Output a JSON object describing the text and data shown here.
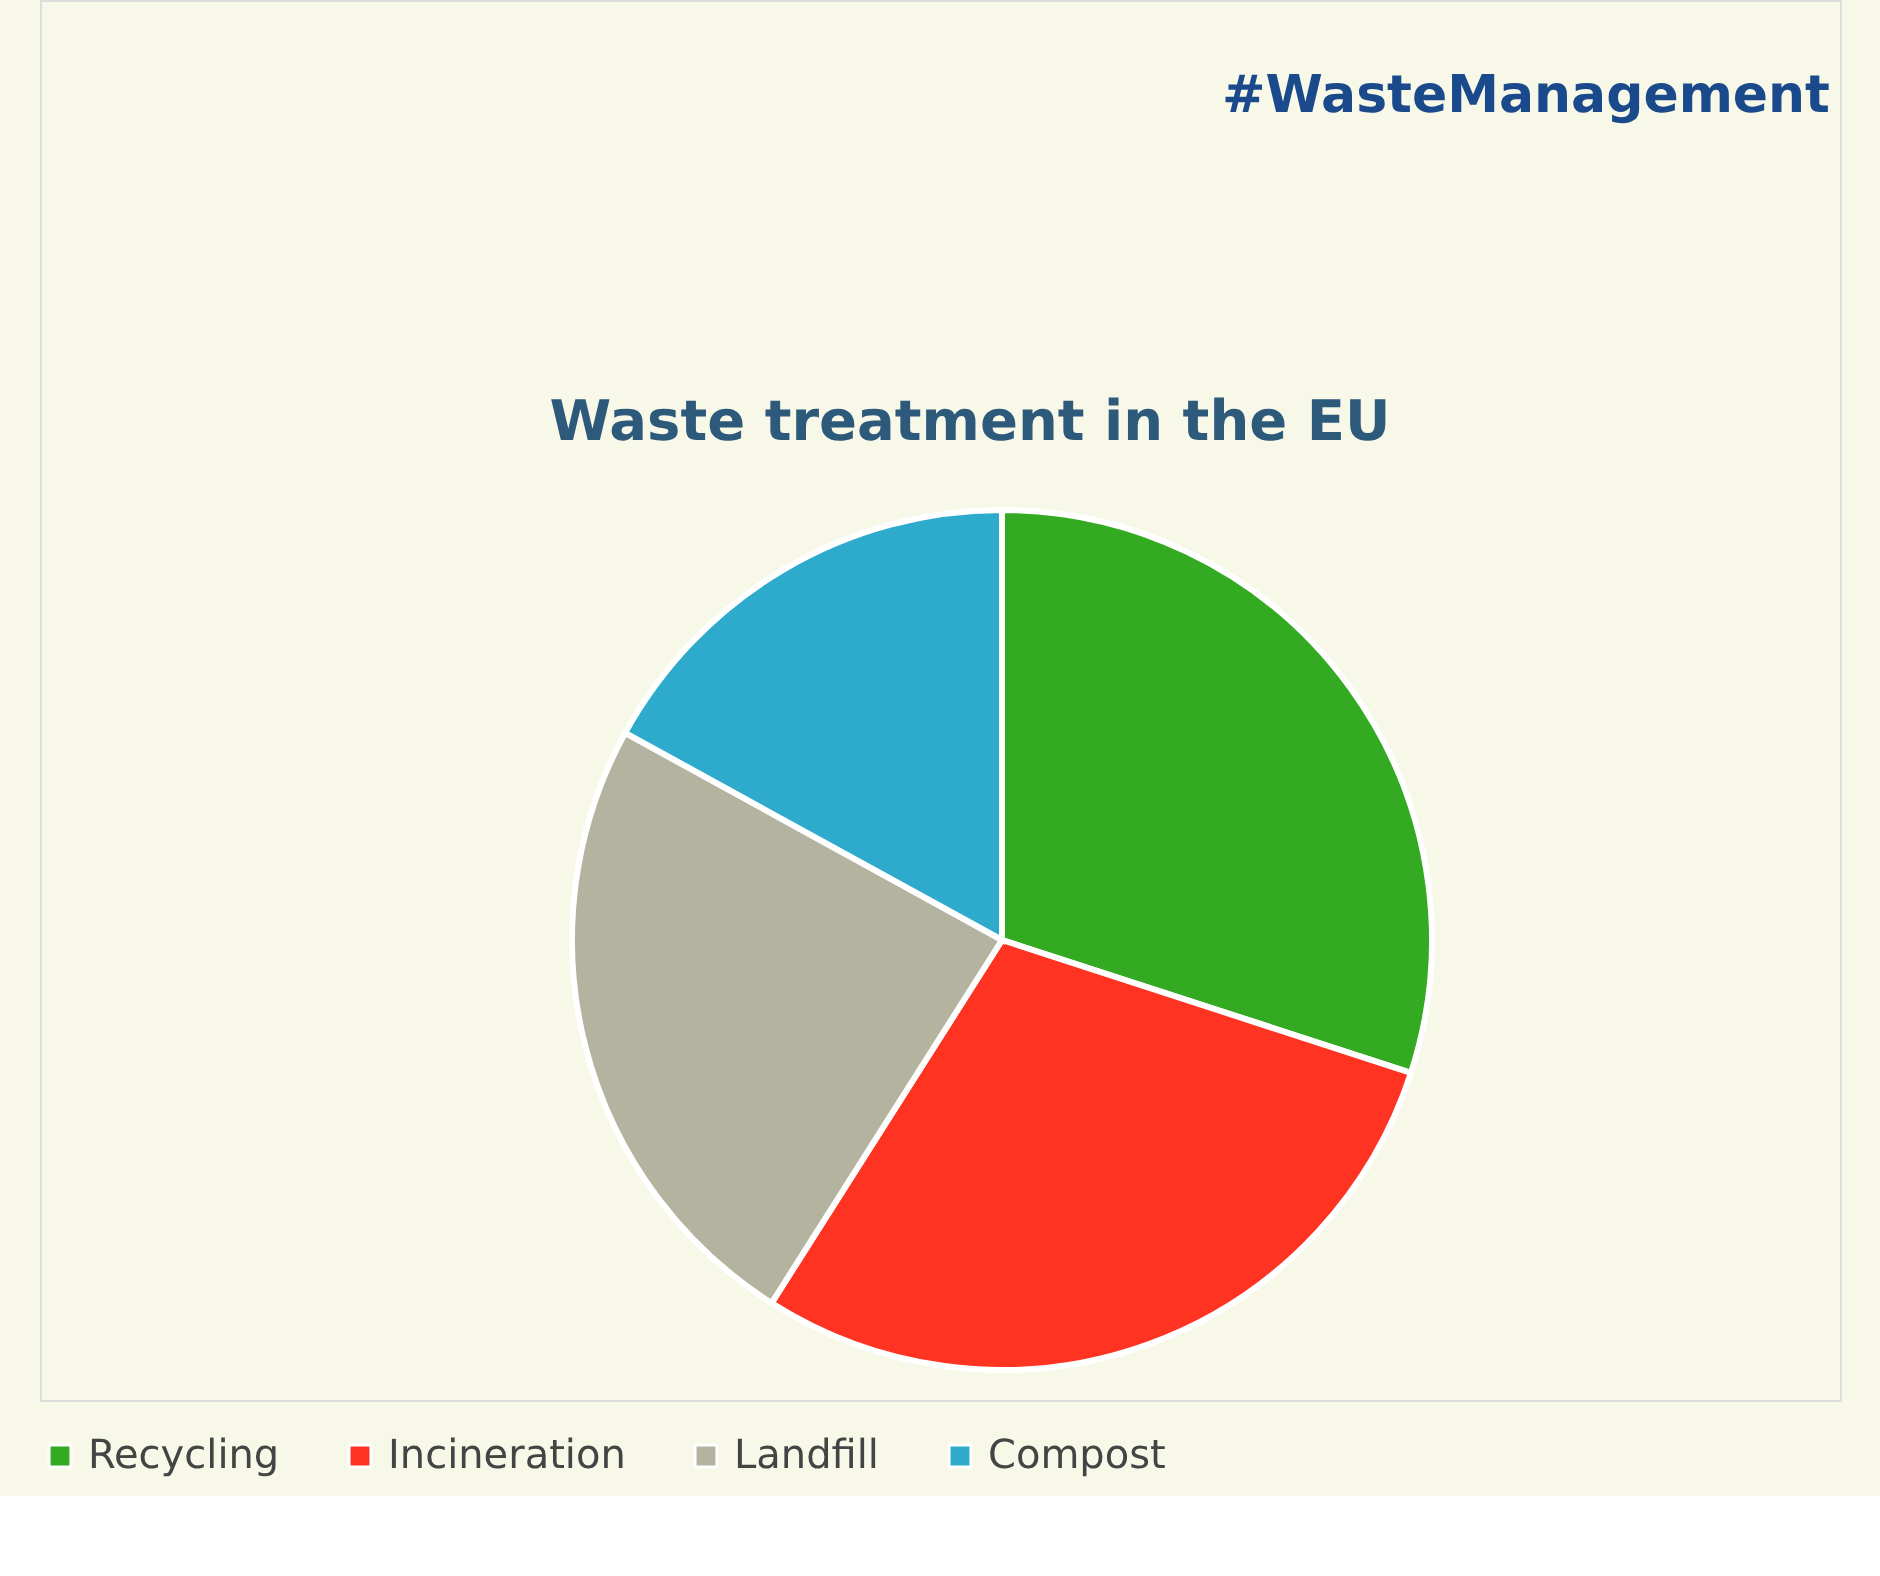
{
  "chart_data": {
    "type": "pie",
    "title": "Waste treatment in the EU",
    "categories": [
      "Recycling",
      "Incineration",
      "Landfill",
      "Compost"
    ],
    "values": [
      30,
      29,
      24,
      17
    ],
    "colors": [
      "#33aa22",
      "#ff3322",
      "#b3b3a0",
      "#2eaacc"
    ],
    "legend": "bottom",
    "annotations": [
      "#WasteManagement"
    ]
  }
}
